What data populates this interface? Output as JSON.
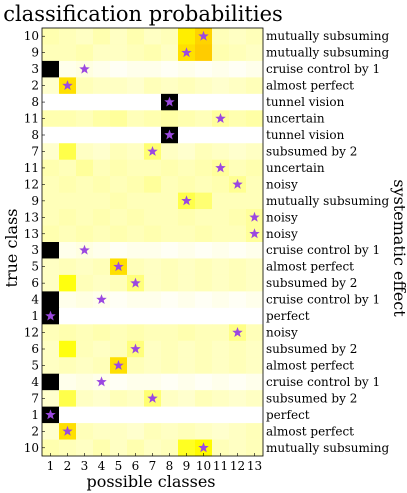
{
  "chart_data": {
    "type": "heatmap",
    "title": "classification probabilities",
    "xlabel": "possible classes",
    "ylabel": "true class",
    "right_label": "systematic effect",
    "x_categories": [
      "1",
      "2",
      "3",
      "4",
      "5",
      "6",
      "7",
      "8",
      "9",
      "10",
      "11",
      "12",
      "13"
    ],
    "true_classes": [
      10,
      9,
      3,
      2,
      8,
      11,
      8,
      7,
      11,
      12,
      9,
      13,
      13,
      3,
      5,
      6,
      4,
      1,
      12,
      6,
      5,
      4,
      7,
      1,
      2,
      10
    ],
    "effects": [
      "mutually subsuming",
      "mutually subsuming",
      "cruise control by 1",
      "almost perfect",
      "tunnel vision",
      "uncertain",
      "tunnel vision",
      "subsumed by 2",
      "uncertain",
      "noisy",
      "mutually subsuming",
      "noisy",
      "noisy",
      "cruise control by 1",
      "almost perfect",
      "subsumed by 2",
      "cruise control by 1",
      "perfect",
      "noisy",
      "subsumed by 2",
      "almost perfect",
      "cruise control by 1",
      "subsumed by 2",
      "perfect",
      "almost perfect",
      "mutually subsuming"
    ],
    "marker_legend": "star marks the true class column",
    "colormap": "hot",
    "values": [
      [
        0.08,
        0.07,
        0.06,
        0.08,
        0.06,
        0.08,
        0.06,
        0.07,
        0.28,
        0.32,
        0.07,
        0.06,
        0.07
      ],
      [
        0.07,
        0.07,
        0.08,
        0.06,
        0.06,
        0.07,
        0.08,
        0.06,
        0.3,
        0.33,
        0.08,
        0.07,
        0.06
      ],
      [
        1.0,
        0.02,
        0.03,
        0.02,
        0.01,
        0.02,
        0.02,
        0.01,
        0.02,
        0.01,
        0.02,
        0.01,
        0.02
      ],
      [
        0.05,
        0.3,
        0.07,
        0.06,
        0.06,
        0.05,
        0.07,
        0.06,
        0.07,
        0.06,
        0.05,
        0.06,
        0.07
      ],
      [
        0.0,
        0.0,
        0.0,
        0.0,
        0.0,
        0.0,
        0.0,
        1.0,
        0.0,
        0.0,
        0.0,
        0.0,
        0.0
      ],
      [
        0.08,
        0.08,
        0.07,
        0.09,
        0.1,
        0.07,
        0.08,
        0.09,
        0.08,
        0.07,
        0.1,
        0.08,
        0.09
      ],
      [
        0.0,
        0.0,
        0.0,
        0.0,
        0.0,
        0.0,
        0.0,
        1.0,
        0.0,
        0.0,
        0.0,
        0.0,
        0.0
      ],
      [
        0.05,
        0.18,
        0.06,
        0.05,
        0.07,
        0.06,
        0.14,
        0.06,
        0.05,
        0.07,
        0.06,
        0.05,
        0.06
      ],
      [
        0.08,
        0.07,
        0.1,
        0.07,
        0.08,
        0.07,
        0.07,
        0.08,
        0.07,
        0.08,
        0.1,
        0.07,
        0.08
      ],
      [
        0.07,
        0.08,
        0.07,
        0.08,
        0.07,
        0.08,
        0.1,
        0.07,
        0.08,
        0.07,
        0.08,
        0.11,
        0.07
      ],
      [
        0.07,
        0.07,
        0.07,
        0.07,
        0.08,
        0.07,
        0.07,
        0.07,
        0.18,
        0.14,
        0.07,
        0.07,
        0.07
      ],
      [
        0.07,
        0.08,
        0.07,
        0.08,
        0.07,
        0.08,
        0.07,
        0.07,
        0.08,
        0.07,
        0.07,
        0.08,
        0.1
      ],
      [
        0.08,
        0.07,
        0.08,
        0.07,
        0.08,
        0.07,
        0.08,
        0.07,
        0.07,
        0.08,
        0.07,
        0.07,
        0.1
      ],
      [
        1.0,
        0.02,
        0.03,
        0.02,
        0.01,
        0.02,
        0.02,
        0.01,
        0.02,
        0.01,
        0.02,
        0.01,
        0.02
      ],
      [
        0.06,
        0.07,
        0.06,
        0.07,
        0.3,
        0.07,
        0.06,
        0.07,
        0.06,
        0.07,
        0.06,
        0.07,
        0.06
      ],
      [
        0.06,
        0.24,
        0.07,
        0.06,
        0.07,
        0.13,
        0.06,
        0.07,
        0.06,
        0.07,
        0.06,
        0.07,
        0.06
      ],
      [
        1.0,
        0.02,
        0.03,
        0.02,
        0.01,
        0.02,
        0.02,
        0.01,
        0.02,
        0.01,
        0.02,
        0.01,
        0.02
      ],
      [
        1.0,
        0.0,
        0.0,
        0.0,
        0.0,
        0.0,
        0.0,
        0.0,
        0.0,
        0.0,
        0.0,
        0.0,
        0.0
      ],
      [
        0.07,
        0.08,
        0.07,
        0.08,
        0.07,
        0.08,
        0.07,
        0.07,
        0.08,
        0.07,
        0.07,
        0.12,
        0.07
      ],
      [
        0.06,
        0.24,
        0.07,
        0.06,
        0.07,
        0.13,
        0.06,
        0.07,
        0.06,
        0.07,
        0.06,
        0.07,
        0.06
      ],
      [
        0.06,
        0.07,
        0.06,
        0.07,
        0.3,
        0.07,
        0.06,
        0.07,
        0.06,
        0.07,
        0.06,
        0.07,
        0.06
      ],
      [
        1.0,
        0.02,
        0.03,
        0.02,
        0.01,
        0.02,
        0.02,
        0.01,
        0.02,
        0.01,
        0.02,
        0.01,
        0.02
      ],
      [
        0.05,
        0.18,
        0.06,
        0.05,
        0.07,
        0.06,
        0.14,
        0.06,
        0.05,
        0.07,
        0.06,
        0.05,
        0.06
      ],
      [
        1.0,
        0.0,
        0.0,
        0.0,
        0.0,
        0.0,
        0.0,
        0.0,
        0.0,
        0.0,
        0.0,
        0.0,
        0.0
      ],
      [
        0.05,
        0.3,
        0.07,
        0.06,
        0.06,
        0.05,
        0.07,
        0.06,
        0.07,
        0.06,
        0.05,
        0.06,
        0.07
      ],
      [
        0.08,
        0.07,
        0.06,
        0.08,
        0.06,
        0.08,
        0.06,
        0.07,
        0.22,
        0.26,
        0.07,
        0.06,
        0.07
      ]
    ],
    "vmin": 0,
    "vmax": 1,
    "colors": {
      "marker": "#9b48e0",
      "frame": "#000000"
    }
  }
}
